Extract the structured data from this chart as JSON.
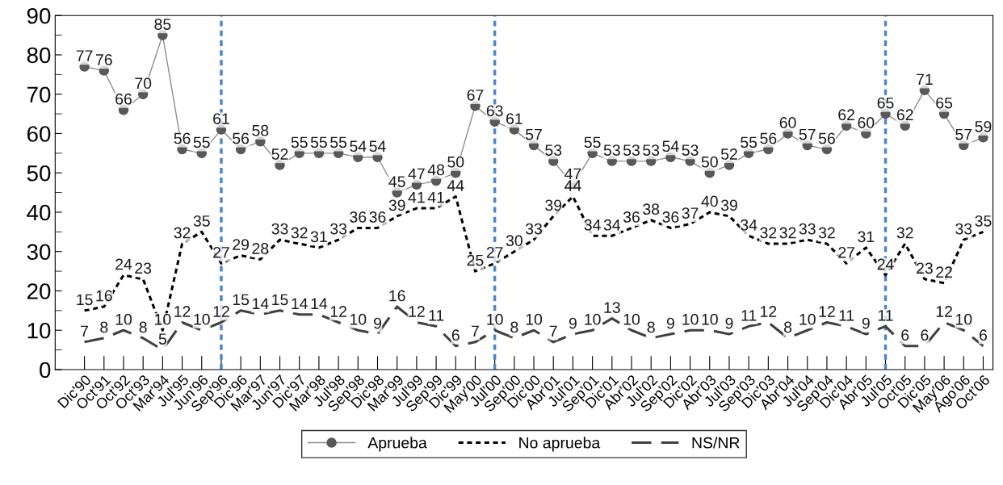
{
  "chart_data": {
    "type": "line",
    "categories": [
      "Dic'90",
      "Oct'91",
      "Oct'92",
      "Oct'93",
      "Mar'94",
      "Jul'95",
      "Jun'96",
      "Sep'96",
      "Dic'96",
      "Mar'97",
      "Jun'97",
      "Dic'97",
      "Mar'98",
      "Jul'98",
      "Sep'98",
      "Dic'98",
      "Mar'99",
      "Jul'99",
      "Sep'99",
      "Dic'99",
      "May'00",
      "Jul'00",
      "Sep'00",
      "Dic'00",
      "Abr'01",
      "Jul'01",
      "Sep'01",
      "Dic'01",
      "Abr'02",
      "Jul'02",
      "Sep'02",
      "Dic'02",
      "Abr'03",
      "Jul'03",
      "Sep'03",
      "Dic'03",
      "Abr'04",
      "Jul'04",
      "Sep'04",
      "Dic'04",
      "Abr'05",
      "Jul'05",
      "Oct'05",
      "Dic'05",
      "May'06",
      "Ago'06",
      "Oct'06"
    ],
    "series": [
      {
        "name": "Aprueba",
        "color": "#595959",
        "marker": "circle",
        "line_style": "solid",
        "values": [
          77,
          76,
          66,
          70,
          85,
          56,
          55,
          61,
          56,
          58,
          52,
          55,
          55,
          55,
          54,
          54,
          45,
          47,
          48,
          50,
          67,
          63,
          61,
          57,
          53,
          47,
          55,
          53,
          53,
          53,
          54,
          53,
          50,
          52,
          55,
          56,
          60,
          57,
          56,
          62,
          60,
          65,
          62,
          71,
          65,
          57,
          59
        ]
      },
      {
        "name": "No aprueba",
        "color": "#000000",
        "marker": "none",
        "line_style": "dotted",
        "values": [
          15,
          16,
          24,
          23,
          10,
          32,
          35,
          27,
          29,
          28,
          33,
          32,
          31,
          33,
          36,
          36,
          39,
          41,
          41,
          44,
          25,
          27,
          30,
          33,
          39,
          44,
          34,
          34,
          36,
          38,
          36,
          37,
          40,
          39,
          34,
          32,
          32,
          33,
          32,
          27,
          31,
          24,
          32,
          23,
          22,
          33,
          35
        ]
      },
      {
        "name": "NS/NR",
        "color": "#404040",
        "marker": "none",
        "line_style": "dashed",
        "values": [
          7,
          8,
          10,
          8,
          5,
          12,
          10,
          12,
          15,
          14,
          15,
          14,
          14,
          12,
          10,
          9,
          16,
          12,
          11,
          6,
          7,
          10,
          8,
          10,
          7,
          9,
          10,
          13,
          10,
          8,
          9,
          10,
          10,
          9,
          11,
          12,
          8,
          10,
          12,
          11,
          9,
          11,
          6,
          6,
          12,
          10,
          6
        ]
      }
    ],
    "ylim": [
      0,
      90
    ],
    "yticks": [
      0,
      10,
      20,
      30,
      40,
      50,
      60,
      70,
      80,
      90
    ],
    "ref_lines": [
      {
        "axis": "x",
        "value": "Sep'96",
        "color": "#4a86d0",
        "line_style": "dotted"
      },
      {
        "axis": "x",
        "value": "Jul'00",
        "color": "#4a86d0",
        "line_style": "dotted"
      },
      {
        "axis": "x",
        "value": "Jul'05",
        "color": "#4a86d0",
        "line_style": "dotted"
      }
    ],
    "data_labels": true,
    "legend": "bottom",
    "grid": false
  }
}
